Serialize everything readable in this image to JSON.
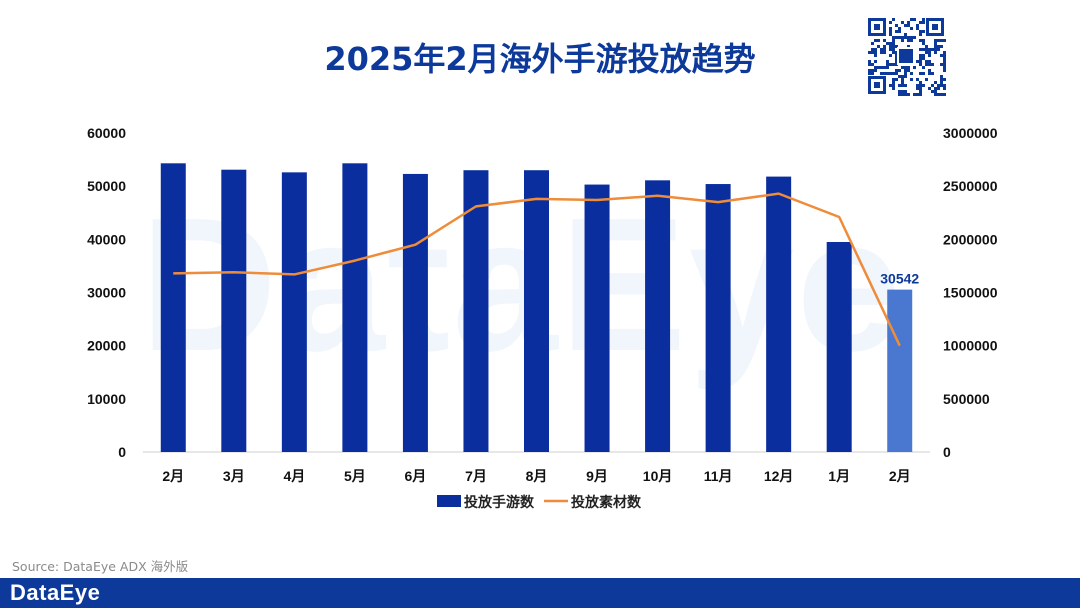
{
  "title": "2025年2月海外手游投放趋势",
  "source": "Source: DataEye ADX 海外版",
  "footer": {
    "logo_text": "DataEye"
  },
  "watermark": "DataEye",
  "colors": {
    "bar": "#0a2e9e",
    "bar_highlight": "#4a78d0",
    "line": "#ee8c3a",
    "brand": "#0d3a9a"
  },
  "chart_data": {
    "type": "bar+line",
    "title": "2025年2月海外手游投放趋势",
    "categories": [
      "2月",
      "3月",
      "4月",
      "5月",
      "6月",
      "7月",
      "8月",
      "9月",
      "10月",
      "11月",
      "12月",
      "1月",
      "2月"
    ],
    "y_left": {
      "ticks": [
        "0",
        "10000",
        "20000",
        "30000",
        "40000",
        "50000",
        "60000"
      ],
      "range": [
        0,
        60000
      ]
    },
    "y_right": {
      "ticks": [
        "0",
        "500000",
        "1000000",
        "1500000",
        "2000000",
        "2500000",
        "3000000"
      ],
      "range": [
        0,
        3000000
      ]
    },
    "series": [
      {
        "name": "投放手游数",
        "type": "bar",
        "axis": "left",
        "values": [
          54300,
          53100,
          52600,
          54300,
          52300,
          53000,
          53000,
          50300,
          51100,
          50400,
          51800,
          39500,
          30542
        ],
        "highlight_index": 12,
        "data_label": "30542"
      },
      {
        "name": "投放素材数",
        "type": "line",
        "axis": "right",
        "values": [
          1680000,
          1690000,
          1670000,
          1800000,
          1950000,
          2310000,
          2380000,
          2370000,
          2410000,
          2350000,
          2430000,
          2210000,
          1000000
        ]
      }
    ],
    "legend": [
      "投放手游数",
      "投放素材数"
    ],
    "legend_position": "bottom-center"
  }
}
